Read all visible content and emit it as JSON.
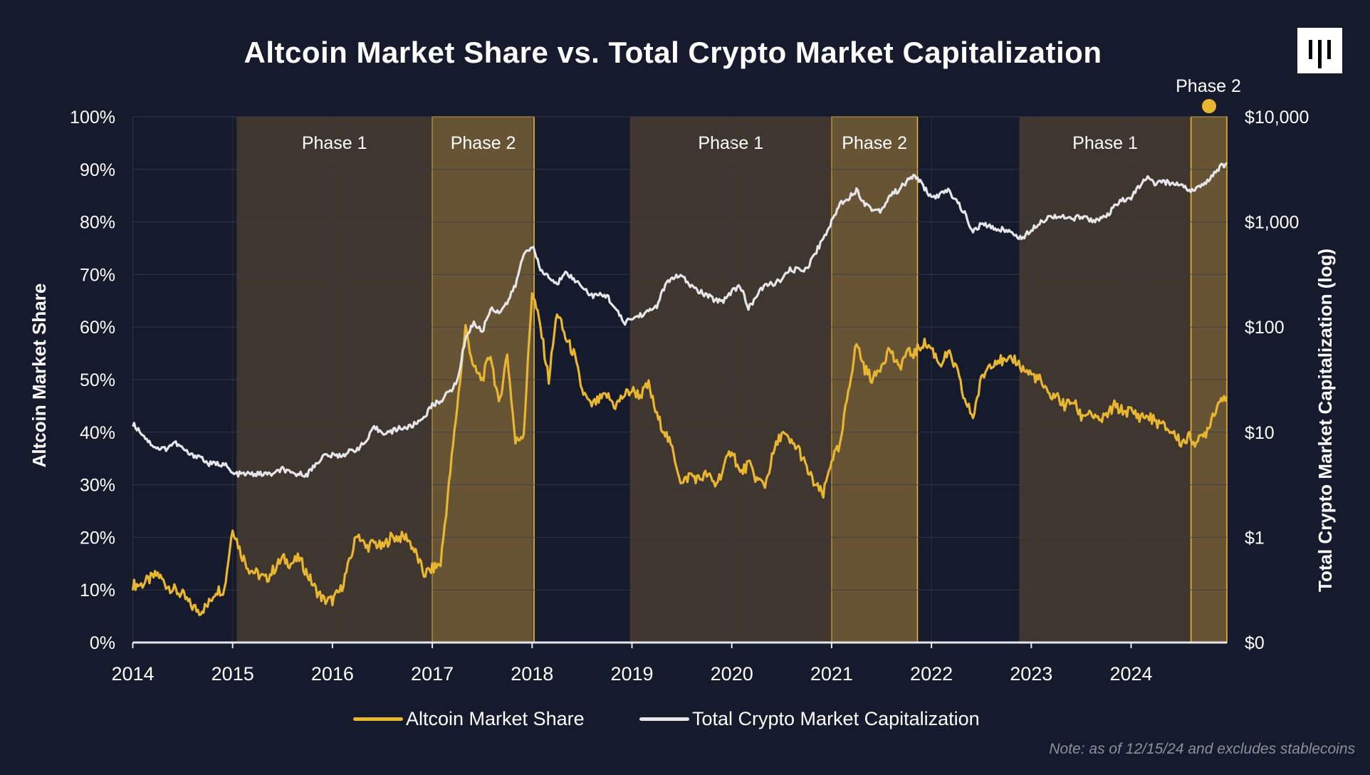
{
  "title": "Altcoin Market Share vs. Total Crypto Market Capitalization",
  "logo_text": "logo",
  "note": "Note: as of 12/15/24 and excludes stablecoins",
  "colors": {
    "background": "#151a2d",
    "altcoin": "#e9b631",
    "market_cap": "#e6e6ea",
    "phase1_fill": "#3f362f",
    "phase2_fill": "#665434",
    "phase2_border": "#e9b631",
    "grid": "#3a3d4a"
  },
  "chart_data": {
    "type": "line",
    "title": "Altcoin Market Share vs. Total Crypto Market Capitalization",
    "xlabel": "",
    "ylabel": "Altcoin Market Share",
    "y2label": "Total Crypto Market Capitalization (log)",
    "xlim": [
      2014.0,
      2024.96
    ],
    "ylim": [
      0,
      100
    ],
    "y2_log_range": [
      -1,
      4
    ],
    "x_ticks": [
      "2014",
      "2015",
      "2016",
      "2017",
      "2018",
      "2019",
      "2020",
      "2021",
      "2022",
      "2023",
      "2024"
    ],
    "y_ticks": [
      "0%",
      "10%",
      "20%",
      "30%",
      "40%",
      "50%",
      "60%",
      "70%",
      "80%",
      "90%",
      "100%"
    ],
    "y2_ticks": [
      "$0",
      "$1",
      "$10",
      "$100",
      "$1,000",
      "$10,000"
    ],
    "grid": true,
    "legend": {
      "placement": "bottom-center",
      "entries": [
        "Altcoin Market Share",
        "Total Crypto Market Capitalization"
      ]
    },
    "phases": [
      {
        "label": "Phase 1",
        "start": 2015.04,
        "end": 2017.0,
        "kind": "phase1"
      },
      {
        "label": "Phase 2",
        "start": 2017.0,
        "end": 2018.02,
        "kind": "phase2"
      },
      {
        "label": "Phase 1",
        "start": 2018.98,
        "end": 2021.0,
        "kind": "phase1"
      },
      {
        "label": "Phase 2",
        "start": 2021.0,
        "end": 2021.86,
        "kind": "phase2"
      },
      {
        "label": "Phase 1",
        "start": 2022.88,
        "end": 2024.6,
        "kind": "phase1"
      },
      {
        "label": "Phase 2",
        "start": 2024.6,
        "end": 2024.96,
        "kind": "phase2"
      }
    ],
    "x_start": 2014.0,
    "x_step_months": 1,
    "series": [
      {
        "name": "Altcoin Market Share",
        "unit": "%",
        "values": [
          11,
          11,
          12,
          13,
          11,
          10,
          9,
          7,
          6,
          7,
          10,
          10,
          22,
          17,
          14,
          13,
          12,
          14,
          16,
          15,
          16,
          13,
          10,
          8,
          8,
          10,
          15,
          21,
          18,
          19,
          18,
          20,
          20,
          20,
          17,
          13,
          14,
          15,
          30,
          45,
          60,
          52,
          50,
          55,
          45,
          55,
          38,
          40,
          67,
          60,
          50,
          63,
          58,
          55,
          48,
          45,
          46,
          47,
          45,
          47,
          48,
          47,
          49,
          43,
          40,
          36,
          30,
          32,
          31,
          32,
          30,
          33,
          37,
          32,
          34,
          31,
          30,
          36,
          40,
          38,
          37,
          33,
          30,
          28,
          35,
          37,
          48,
          57,
          52,
          50,
          53,
          56,
          52,
          55,
          55,
          57,
          56,
          53,
          55,
          52,
          46,
          43,
          50,
          53,
          54,
          53,
          54,
          52,
          51,
          50,
          47,
          47,
          45,
          46,
          43,
          44,
          42,
          43,
          45,
          44,
          44,
          43,
          43,
          42,
          41,
          40,
          38,
          39,
          38,
          40,
          44,
          47
        ]
      },
      {
        "name": "Total Crypto Market Capitalization",
        "unit": "$B",
        "values": [
          12,
          10,
          8,
          7,
          7,
          8,
          7,
          6,
          6,
          5,
          5,
          5,
          4,
          4,
          4,
          4,
          4,
          4,
          4.5,
          4,
          4,
          4,
          5,
          6,
          6,
          6,
          6.5,
          7,
          8,
          11,
          10,
          10,
          11,
          11,
          12,
          14,
          18,
          20,
          24,
          30,
          80,
          110,
          90,
          150,
          140,
          170,
          250,
          500,
          600,
          350,
          300,
          250,
          350,
          280,
          250,
          200,
          200,
          200,
          150,
          110,
          120,
          130,
          140,
          160,
          250,
          300,
          300,
          250,
          220,
          200,
          180,
          180,
          220,
          250,
          150,
          200,
          250,
          260,
          280,
          350,
          350,
          360,
          500,
          700,
          1000,
          1500,
          1700,
          2000,
          1500,
          1300,
          1300,
          1800,
          2000,
          2400,
          2800,
          2200,
          1700,
          1800,
          2000,
          1600,
          1200,
          800,
          950,
          900,
          850,
          850,
          750,
          700,
          850,
          1000,
          1100,
          1150,
          1100,
          1050,
          1150,
          1050,
          1050,
          1100,
          1400,
          1600,
          1700,
          2200,
          2600,
          2300,
          2400,
          2300,
          2300,
          2000,
          2100,
          2300,
          3000,
          3500
        ]
      }
    ]
  }
}
